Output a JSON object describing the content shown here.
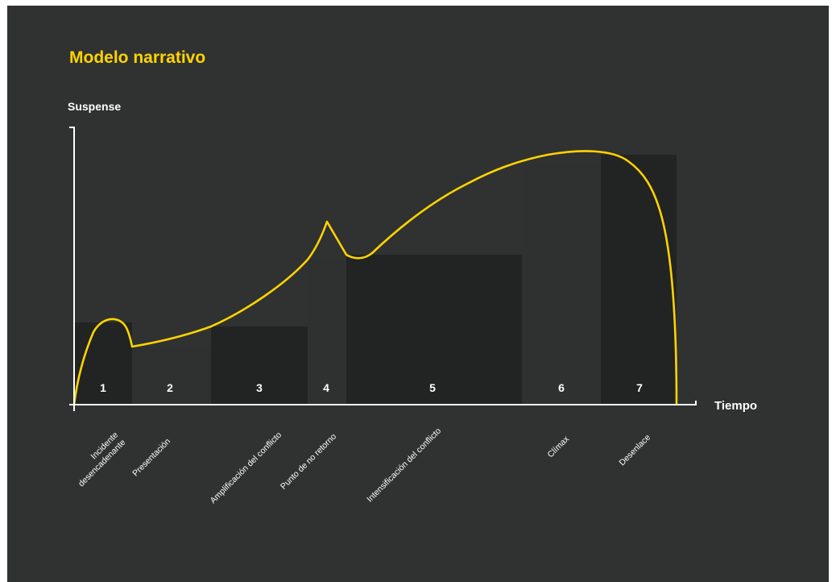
{
  "title": "Modelo narrativo",
  "colors": {
    "background": "#303131",
    "curve": "#ffd400",
    "band_dark": "#222323",
    "band_light": "#2f3030",
    "axis": "#ffffff"
  },
  "axes": {
    "y_label": "Suspense",
    "x_label": "Tiempo"
  },
  "stages": [
    {
      "number": "1",
      "label_lines": [
        "Incidente",
        "desencadenante"
      ],
      "shade": "dark"
    },
    {
      "number": "2",
      "label_lines": [
        "Presentación"
      ],
      "shade": "light"
    },
    {
      "number": "3",
      "label_lines": [
        "Amplificación del conflicto"
      ],
      "shade": "dark"
    },
    {
      "number": "4",
      "label_lines": [
        "Punto de no retorno"
      ],
      "shade": "light"
    },
    {
      "number": "5",
      "label_lines": [
        "Intensificación del conflicto"
      ],
      "shade": "dark"
    },
    {
      "number": "6",
      "label_lines": [
        "Clímax"
      ],
      "shade": "light"
    },
    {
      "number": "7",
      "label_lines": [
        "Desenlace"
      ],
      "shade": "dark"
    }
  ]
}
